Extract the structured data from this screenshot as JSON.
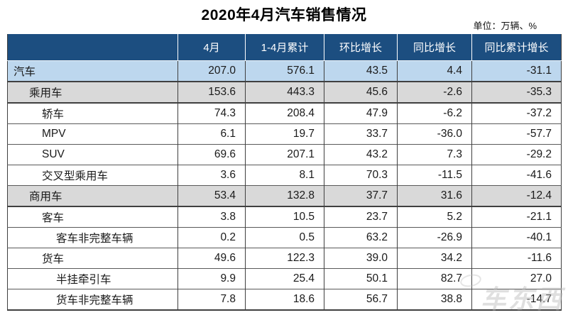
{
  "title": "2020年4月汽车销售情况",
  "unit_note": "单位：万辆、%",
  "watermark_text": "车东西",
  "colors": {
    "header_bg": "#1C4E80",
    "header_text": "#FFFFFF",
    "total_row_bg": "#BDD7EE",
    "section_row_bg": "#D9D9D9",
    "grid_line": "#3F3F3F",
    "body_text": "#1A1A1A"
  },
  "chart_data": {
    "type": "table",
    "title": "2020年4月汽车销售情况",
    "unit": "万辆、%",
    "columns": [
      "",
      "4月",
      "1-4月累计",
      "环比增长",
      "同比增长",
      "同比累计增长"
    ],
    "rows": [
      {
        "label": "汽车",
        "level": 0,
        "style": "highlight",
        "values": [
          "207.0",
          "576.1",
          "43.5",
          "4.4",
          "-31.1"
        ]
      },
      {
        "label": "乘用车",
        "level": 1,
        "style": "section",
        "values": [
          "153.6",
          "443.3",
          "45.6",
          "-2.6",
          "-35.3"
        ]
      },
      {
        "label": "轿车",
        "level": 2,
        "style": "plain",
        "values": [
          "74.3",
          "208.4",
          "47.9",
          "-6.2",
          "-37.2"
        ]
      },
      {
        "label": "MPV",
        "level": 2,
        "style": "plain",
        "values": [
          "6.1",
          "19.7",
          "33.7",
          "-36.0",
          "-57.7"
        ]
      },
      {
        "label": "SUV",
        "level": 2,
        "style": "plain",
        "values": [
          "69.6",
          "207.1",
          "43.2",
          "7.3",
          "-29.2"
        ]
      },
      {
        "label": "交叉型乘用车",
        "level": 2,
        "style": "plain",
        "values": [
          "3.6",
          "8.1",
          "70.3",
          "-11.5",
          "-41.6"
        ]
      },
      {
        "label": "商用车",
        "level": 1,
        "style": "section",
        "values": [
          "53.4",
          "132.8",
          "37.7",
          "31.6",
          "-12.4"
        ]
      },
      {
        "label": "客车",
        "level": 2,
        "style": "plain",
        "values": [
          "3.8",
          "10.5",
          "23.7",
          "5.2",
          "-21.1"
        ]
      },
      {
        "label": "客车非完整车辆",
        "level": 3,
        "style": "plain",
        "values": [
          "0.2",
          "0.5",
          "63.2",
          "-26.9",
          "-40.1"
        ]
      },
      {
        "label": "货车",
        "level": 2,
        "style": "plain",
        "values": [
          "49.6",
          "122.3",
          "39.0",
          "34.2",
          "-11.6"
        ]
      },
      {
        "label": "半挂牵引车",
        "level": 3,
        "style": "plain",
        "values": [
          "9.9",
          "25.4",
          "50.1",
          "82.7",
          "27.0"
        ]
      },
      {
        "label": "货车非完整车辆",
        "level": 3,
        "style": "plain",
        "values": [
          "7.8",
          "18.6",
          "56.7",
          "38.8",
          "-14.7"
        ]
      }
    ]
  }
}
